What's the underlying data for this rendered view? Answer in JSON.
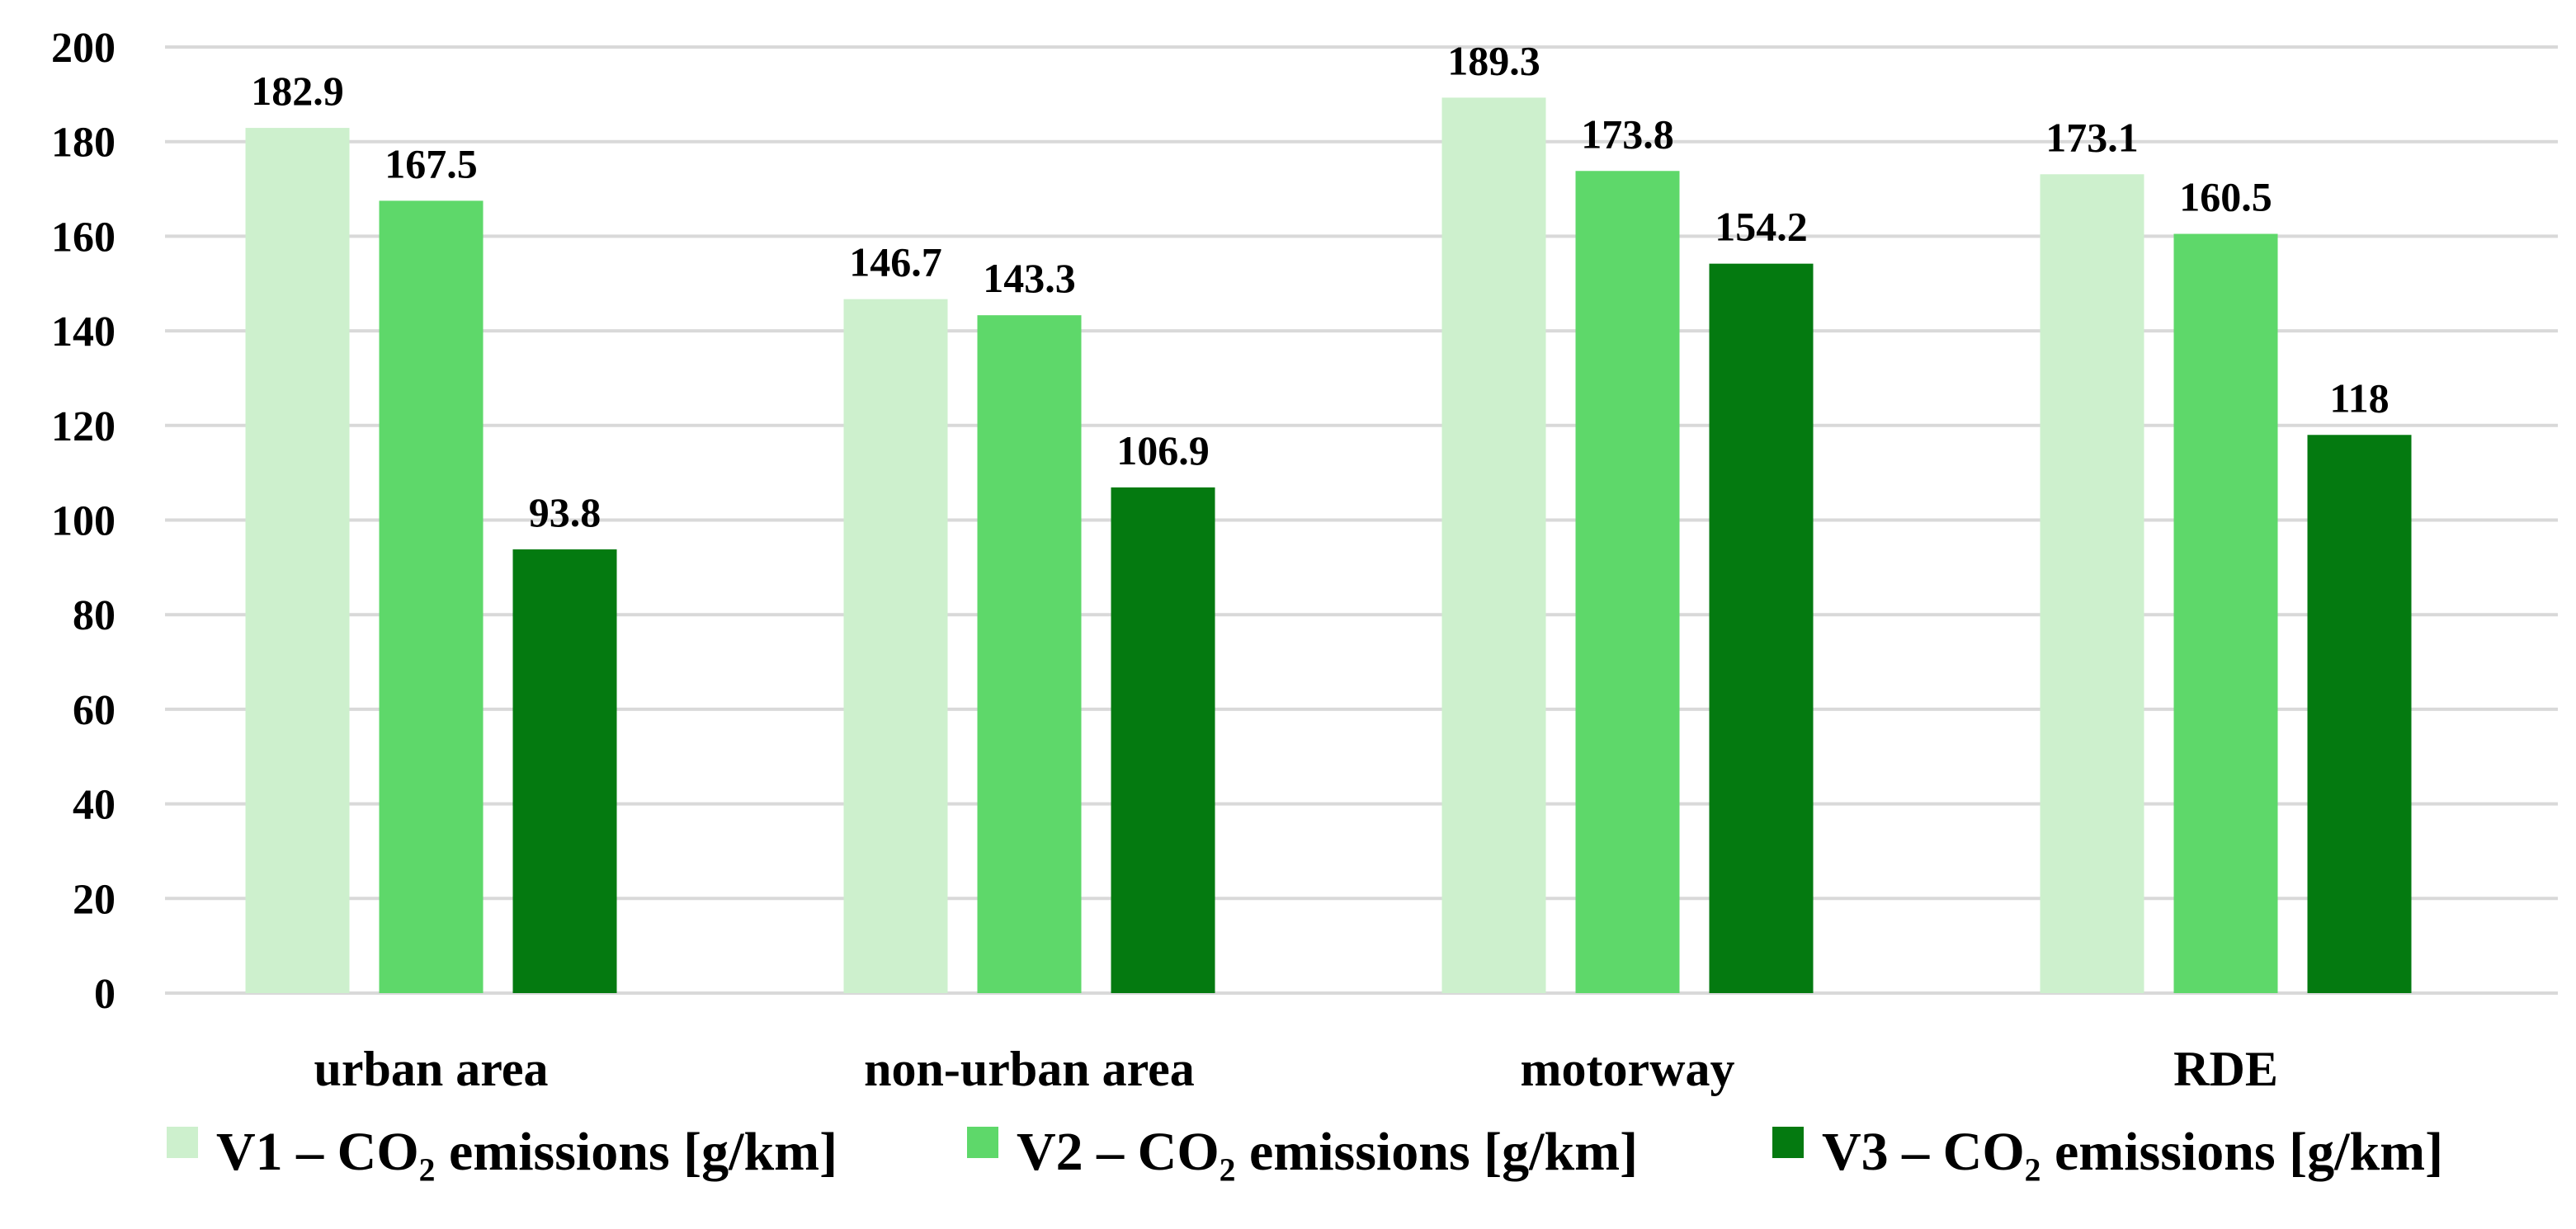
{
  "chart_data": {
    "type": "bar",
    "categories": [
      "urban area",
      "non-urban area",
      "motorway",
      "RDE"
    ],
    "series": [
      {
        "name": "V1 – CO₂ emissions [g/km]",
        "color": "#cdf0cd",
        "values": [
          182.9,
          146.7,
          189.3,
          173.1
        ],
        "labels": [
          "182.9",
          "146.7",
          "189.3",
          "173.1"
        ]
      },
      {
        "name": "V2 – CO₂ emissions [g/km]",
        "color": "#5ed86a",
        "values": [
          167.5,
          143.3,
          173.8,
          160.5
        ],
        "labels": [
          "167.5",
          "143.3",
          "173.8",
          "160.5"
        ]
      },
      {
        "name": "V3 – CO₂ emissions [g/km]",
        "color": "#047a10",
        "values": [
          93.8,
          106.9,
          154.2,
          118
        ],
        "labels": [
          "93.8",
          "106.9",
          "154.2",
          "118"
        ]
      }
    ],
    "yticks": [
      "0",
      "20",
      "40",
      "60",
      "80",
      "100",
      "120",
      "140",
      "160",
      "180",
      "200"
    ],
    "ylim": [
      0,
      200
    ],
    "grid": true,
    "legend": "bottom",
    "xlabel": "",
    "ylabel": "",
    "title": ""
  }
}
